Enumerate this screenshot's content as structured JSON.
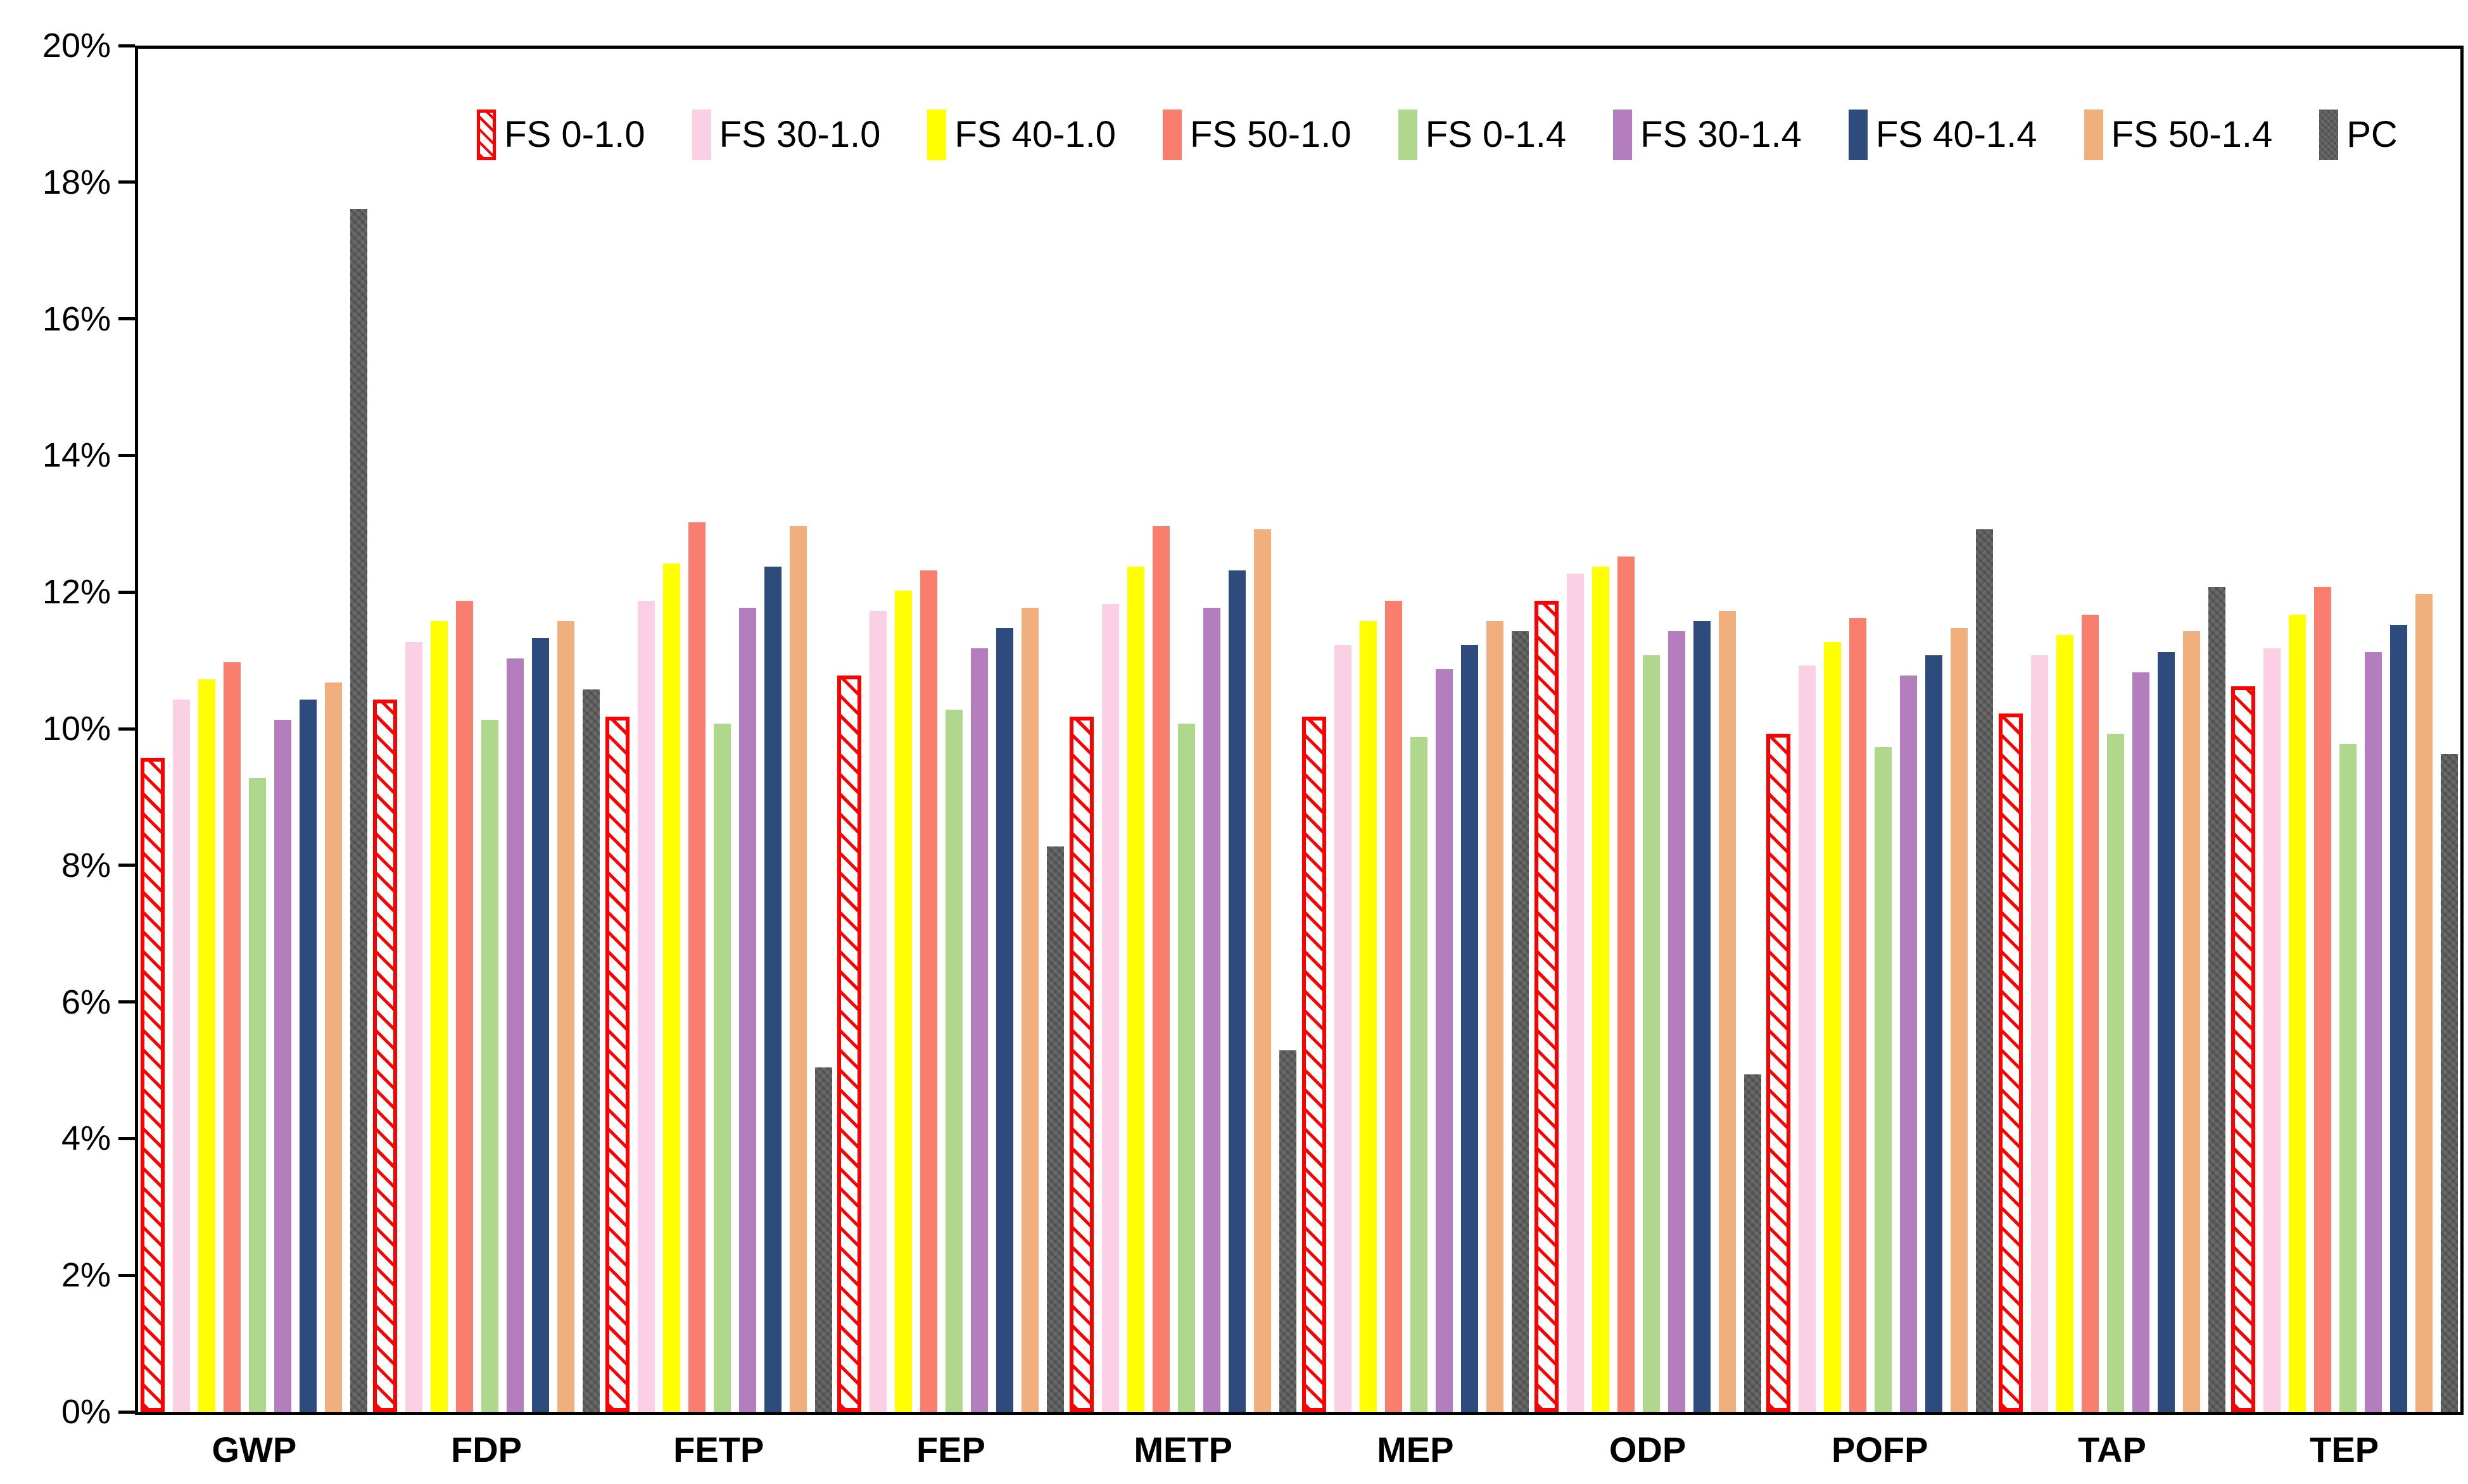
{
  "chart_data": {
    "type": "bar",
    "title": "",
    "xlabel": "",
    "ylabel": "",
    "grid": false,
    "legend_position": "top-inside",
    "ylim": [
      0,
      20
    ],
    "ytick_step": 2,
    "ytick_labels": [
      "20%",
      "18%",
      "16%",
      "14%",
      "12%",
      "10%",
      "8%",
      "6%",
      "4%",
      "2%",
      "0%"
    ],
    "categories": [
      "GWP",
      "FDP",
      "FETP",
      "FEP",
      "METP",
      "MEP",
      "ODP",
      "POFP",
      "TAP",
      "TEP"
    ],
    "series": [
      {
        "name": "FS 0-1.0",
        "color": "#FF0000",
        "pattern": "hatch-red",
        "values": [
          9.6,
          10.45,
          10.2,
          10.8,
          10.2,
          10.2,
          11.9,
          9.95,
          10.25,
          10.65
        ]
      },
      {
        "name": "FS 30-1.0",
        "color": "#FBD0E4",
        "pattern": "solid",
        "values": [
          10.45,
          11.3,
          11.9,
          11.75,
          11.85,
          11.25,
          12.3,
          10.95,
          11.1,
          11.2
        ]
      },
      {
        "name": "FS 40-1.0",
        "color": "#FFFF00",
        "pattern": "solid",
        "values": [
          10.75,
          11.6,
          12.45,
          12.05,
          12.4,
          11.6,
          12.4,
          11.3,
          11.4,
          11.7
        ]
      },
      {
        "name": "FS 50-1.0",
        "color": "#FA7E6E",
        "pattern": "solid",
        "values": [
          11.0,
          11.9,
          13.05,
          12.35,
          13.0,
          11.9,
          12.55,
          11.65,
          11.7,
          12.1
        ]
      },
      {
        "name": "FS 0-1.4",
        "color": "#AFD88D",
        "pattern": "solid",
        "values": [
          9.3,
          10.15,
          10.1,
          10.3,
          10.1,
          9.9,
          11.1,
          9.75,
          9.95,
          9.8
        ]
      },
      {
        "name": "FS 30-1.4",
        "color": "#B47EBE",
        "pattern": "solid",
        "values": [
          10.15,
          11.05,
          11.8,
          11.2,
          11.8,
          10.9,
          11.45,
          10.8,
          10.85,
          11.15
        ]
      },
      {
        "name": "FS 40-1.4",
        "color": "#2E4B7D",
        "pattern": "solid",
        "values": [
          10.45,
          11.35,
          12.4,
          11.5,
          12.35,
          11.25,
          11.6,
          11.1,
          11.15,
          11.55
        ]
      },
      {
        "name": "FS 50-1.4",
        "color": "#F2AF7E",
        "pattern": "solid",
        "values": [
          10.7,
          11.6,
          13.0,
          11.8,
          12.95,
          11.6,
          11.75,
          11.5,
          11.45,
          12.0
        ]
      },
      {
        "name": "PC",
        "color": "#6A6A6A",
        "pattern": "texture-gray",
        "values": [
          17.65,
          10.6,
          5.05,
          8.3,
          5.3,
          11.45,
          4.95,
          12.95,
          12.1,
          9.65
        ]
      }
    ],
    "axis_color": "#000000",
    "background_color": "#FFFFFF"
  }
}
